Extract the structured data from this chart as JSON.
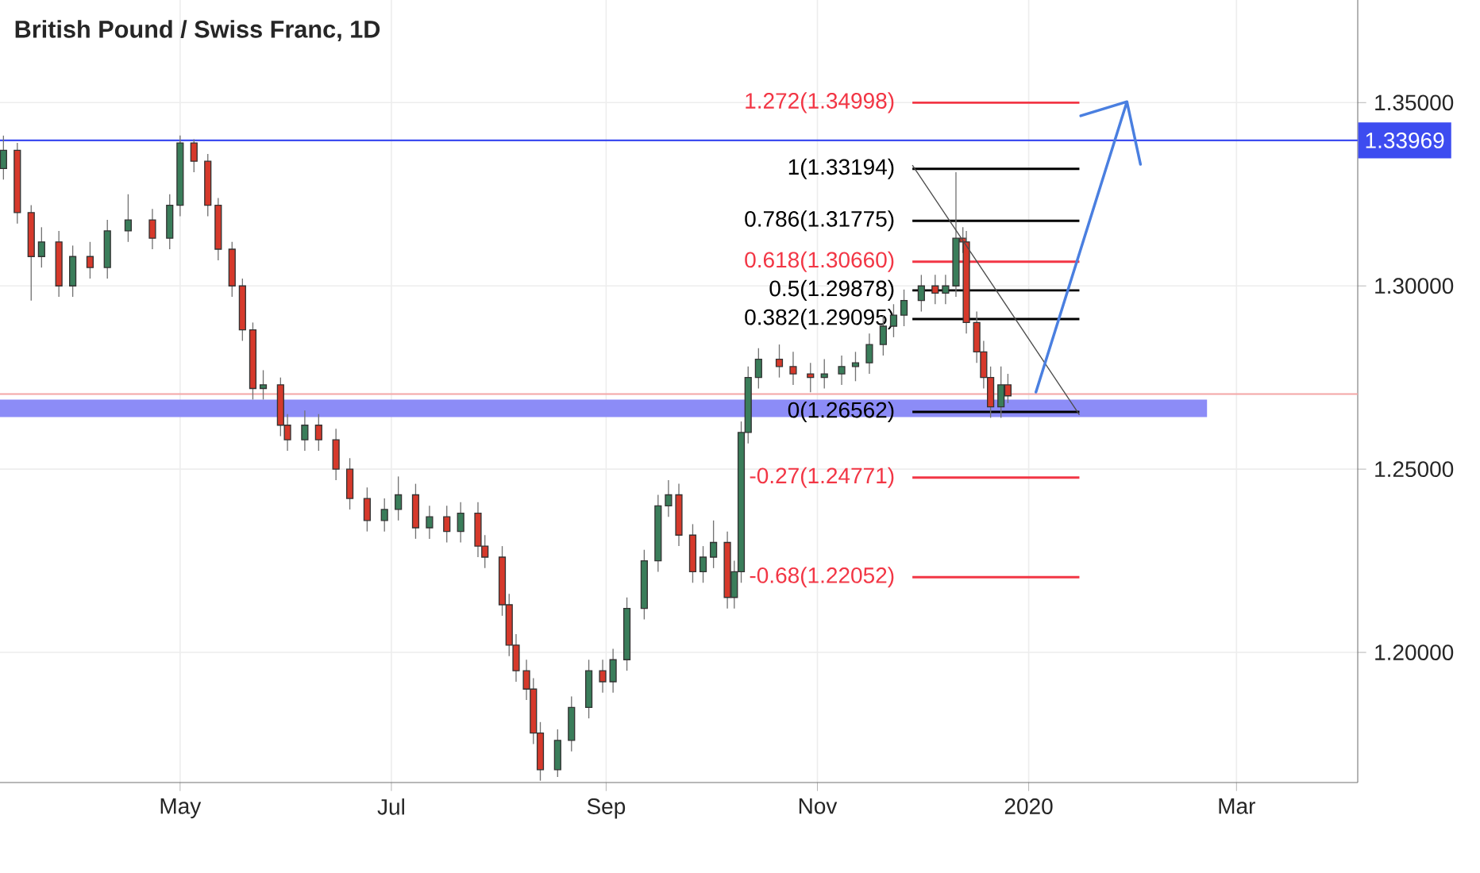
{
  "chart_data": {
    "type": "candlestick",
    "title": "British Pound / Swiss Franc, 1D",
    "x": [
      "2019-03-11",
      "2019-03-15",
      "2019-03-19",
      "2019-03-22",
      "2019-03-27",
      "2019-03-31",
      "2019-04-05",
      "2019-04-10",
      "2019-04-16",
      "2019-04-23",
      "2019-04-28",
      "2019-05-01",
      "2019-05-05",
      "2019-05-09",
      "2019-05-12",
      "2019-05-16",
      "2019-05-19",
      "2019-05-22",
      "2019-05-25",
      "2019-05-30",
      "2019-06-01",
      "2019-06-06",
      "2019-06-10",
      "2019-06-15",
      "2019-06-19",
      "2019-06-24",
      "2019-06-29",
      "2019-07-03",
      "2019-07-08",
      "2019-07-12",
      "2019-07-17",
      "2019-07-21",
      "2019-07-26",
      "2019-07-28",
      "2019-08-02",
      "2019-08-04",
      "2019-08-06",
      "2019-08-09",
      "2019-08-11",
      "2019-08-13",
      "2019-08-18",
      "2019-08-22",
      "2019-08-27",
      "2019-08-31",
      "2019-09-03",
      "2019-09-07",
      "2019-09-12",
      "2019-09-16",
      "2019-09-19",
      "2019-09-22",
      "2019-09-26",
      "2019-09-29",
      "2019-10-02",
      "2019-10-06",
      "2019-10-08",
      "2019-10-10",
      "2019-10-12",
      "2019-10-15",
      "2019-10-21",
      "2019-10-25",
      "2019-10-30",
      "2019-11-03",
      "2019-11-08",
      "2019-11-12",
      "2019-11-16",
      "2019-11-20",
      "2019-11-23",
      "2019-11-26",
      "2019-12-01",
      "2019-12-05",
      "2019-12-08",
      "2019-12-11",
      "2019-12-13",
      "2019-12-14",
      "2019-12-17",
      "2019-12-19",
      "2019-12-21",
      "2019-12-24",
      "2019-12-26"
    ],
    "ohlc": [
      [
        1.332,
        1.341,
        1.329,
        1.337
      ],
      [
        1.337,
        1.339,
        1.317,
        1.32
      ],
      [
        1.32,
        1.322,
        1.296,
        1.308
      ],
      [
        1.308,
        1.316,
        1.305,
        1.312
      ],
      [
        1.312,
        1.315,
        1.297,
        1.3
      ],
      [
        1.3,
        1.311,
        1.297,
        1.308
      ],
      [
        1.308,
        1.312,
        1.302,
        1.305
      ],
      [
        1.305,
        1.318,
        1.302,
        1.315
      ],
      [
        1.315,
        1.325,
        1.312,
        1.318
      ],
      [
        1.318,
        1.321,
        1.31,
        1.313
      ],
      [
        1.313,
        1.325,
        1.31,
        1.322
      ],
      [
        1.322,
        1.341,
        1.319,
        1.339
      ],
      [
        1.339,
        1.34,
        1.331,
        1.334
      ],
      [
        1.334,
        1.336,
        1.319,
        1.322
      ],
      [
        1.322,
        1.324,
        1.307,
        1.31
      ],
      [
        1.31,
        1.312,
        1.297,
        1.3
      ],
      [
        1.3,
        1.302,
        1.285,
        1.288
      ],
      [
        1.288,
        1.29,
        1.269,
        1.272
      ],
      [
        1.272,
        1.277,
        1.269,
        1.273
      ],
      [
        1.273,
        1.275,
        1.259,
        1.262
      ],
      [
        1.262,
        1.265,
        1.255,
        1.258
      ],
      [
        1.258,
        1.266,
        1.255,
        1.262
      ],
      [
        1.262,
        1.265,
        1.255,
        1.258
      ],
      [
        1.258,
        1.261,
        1.247,
        1.25
      ],
      [
        1.25,
        1.253,
        1.239,
        1.242
      ],
      [
        1.242,
        1.245,
        1.233,
        1.236
      ],
      [
        1.236,
        1.242,
        1.233,
        1.239
      ],
      [
        1.239,
        1.248,
        1.236,
        1.243
      ],
      [
        1.243,
        1.246,
        1.231,
        1.234
      ],
      [
        1.234,
        1.24,
        1.231,
        1.237
      ],
      [
        1.237,
        1.24,
        1.23,
        1.233
      ],
      [
        1.233,
        1.241,
        1.23,
        1.238
      ],
      [
        1.238,
        1.241,
        1.226,
        1.229
      ],
      [
        1.229,
        1.232,
        1.223,
        1.226
      ],
      [
        1.226,
        1.229,
        1.21,
        1.213
      ],
      [
        1.213,
        1.216,
        1.199,
        1.202
      ],
      [
        1.202,
        1.205,
        1.192,
        1.195
      ],
      [
        1.195,
        1.198,
        1.187,
        1.19
      ],
      [
        1.19,
        1.193,
        1.175,
        1.178
      ],
      [
        1.178,
        1.181,
        1.165,
        1.168
      ],
      [
        1.168,
        1.179,
        1.166,
        1.176
      ],
      [
        1.176,
        1.188,
        1.173,
        1.185
      ],
      [
        1.185,
        1.198,
        1.182,
        1.195
      ],
      [
        1.195,
        1.198,
        1.189,
        1.192
      ],
      [
        1.192,
        1.201,
        1.189,
        1.198
      ],
      [
        1.198,
        1.215,
        1.195,
        1.212
      ],
      [
        1.212,
        1.228,
        1.209,
        1.225
      ],
      [
        1.225,
        1.243,
        1.222,
        1.24
      ],
      [
        1.24,
        1.247,
        1.237,
        1.243
      ],
      [
        1.243,
        1.246,
        1.229,
        1.232
      ],
      [
        1.232,
        1.235,
        1.219,
        1.222
      ],
      [
        1.222,
        1.229,
        1.219,
        1.226
      ],
      [
        1.226,
        1.236,
        1.223,
        1.23
      ],
      [
        1.23,
        1.233,
        1.212,
        1.215
      ],
      [
        1.215,
        1.225,
        1.212,
        1.222
      ],
      [
        1.222,
        1.263,
        1.219,
        1.26
      ],
      [
        1.26,
        1.278,
        1.257,
        1.275
      ],
      [
        1.275,
        1.283,
        1.272,
        1.28
      ],
      [
        1.28,
        1.284,
        1.275,
        1.278
      ],
      [
        1.278,
        1.282,
        1.273,
        1.276
      ],
      [
        1.276,
        1.279,
        1.271,
        1.275
      ],
      [
        1.275,
        1.28,
        1.272,
        1.276
      ],
      [
        1.276,
        1.281,
        1.273,
        1.278
      ],
      [
        1.278,
        1.282,
        1.274,
        1.279
      ],
      [
        1.279,
        1.287,
        1.276,
        1.284
      ],
      [
        1.284,
        1.292,
        1.281,
        1.289
      ],
      [
        1.289,
        1.295,
        1.286,
        1.292
      ],
      [
        1.292,
        1.299,
        1.289,
        1.296
      ],
      [
        1.296,
        1.303,
        1.293,
        1.3
      ],
      [
        1.3,
        1.303,
        1.295,
        1.298
      ],
      [
        1.298,
        1.303,
        1.295,
        1.3
      ],
      [
        1.3,
        1.331,
        1.297,
        1.313
      ],
      [
        1.313,
        1.316,
        1.309,
        1.312
      ],
      [
        1.312,
        1.315,
        1.287,
        1.29
      ],
      [
        1.29,
        1.293,
        1.279,
        1.282
      ],
      [
        1.282,
        1.285,
        1.272,
        1.275
      ],
      [
        1.275,
        1.278,
        1.264,
        1.267
      ],
      [
        1.267,
        1.278,
        1.264,
        1.273
      ],
      [
        1.273,
        1.276,
        1.268,
        1.27
      ]
    ],
    "xlim": [
      "2019-03-10",
      "2020-04-05"
    ],
    "xticks": [
      {
        "value": "2019-05-01",
        "label": "May"
      },
      {
        "value": "2019-07-01",
        "label": "Jul"
      },
      {
        "value": "2019-09-01",
        "label": "Sep"
      },
      {
        "value": "2019-11-01",
        "label": "Nov"
      },
      {
        "value": "2020-01-01",
        "label": "2020"
      },
      {
        "value": "2020-03-01",
        "label": "Mar"
      }
    ],
    "ylim": [
      1.1645,
      1.378
    ],
    "yticks": [
      {
        "value": 1.2,
        "label": "1.20000"
      },
      {
        "value": 1.25,
        "label": "1.25000"
      },
      {
        "value": 1.3,
        "label": "1.30000"
      },
      {
        "value": 1.35,
        "label": "1.35000"
      }
    ],
    "grid": true,
    "ref_lines": [
      {
        "axis": "y",
        "value": 1.33969,
        "label": "1.33969",
        "color": "#3d4cf0"
      },
      {
        "axis": "y",
        "value": 1.2705,
        "color": "#f4a6a6"
      },
      {
        "axis": "y",
        "value": 1.34998,
        "label": "1.272(1.34998)",
        "color": "#f23645"
      },
      {
        "axis": "y",
        "value": 1.33194,
        "label": "1(1.33194)",
        "color": "#000000"
      },
      {
        "axis": "y",
        "value": 1.31775,
        "label": "0.786(1.31775)",
        "color": "#000000"
      },
      {
        "axis": "y",
        "value": 1.3066,
        "label": "0.618(1.30660)",
        "color": "#f23645"
      },
      {
        "axis": "y",
        "value": 1.29878,
        "label": "0.5(1.29878)",
        "color": "#000000"
      },
      {
        "axis": "y",
        "value": 1.29095,
        "label": "0.382(1.29095)",
        "color": "#000000"
      },
      {
        "axis": "y",
        "value": 1.26562,
        "label": "0(1.26562)",
        "color": "#000000"
      },
      {
        "axis": "y",
        "value": 1.24771,
        "label": "-0.27(1.24771)",
        "color": "#f23645"
      },
      {
        "axis": "y",
        "value": 1.22052,
        "label": "-0.68(1.22052)",
        "color": "#f23645"
      }
    ],
    "bands": [
      {
        "axis": "y",
        "from": 1.2642,
        "to": 1.269,
        "color": "#8c8cf7"
      }
    ]
  }
}
